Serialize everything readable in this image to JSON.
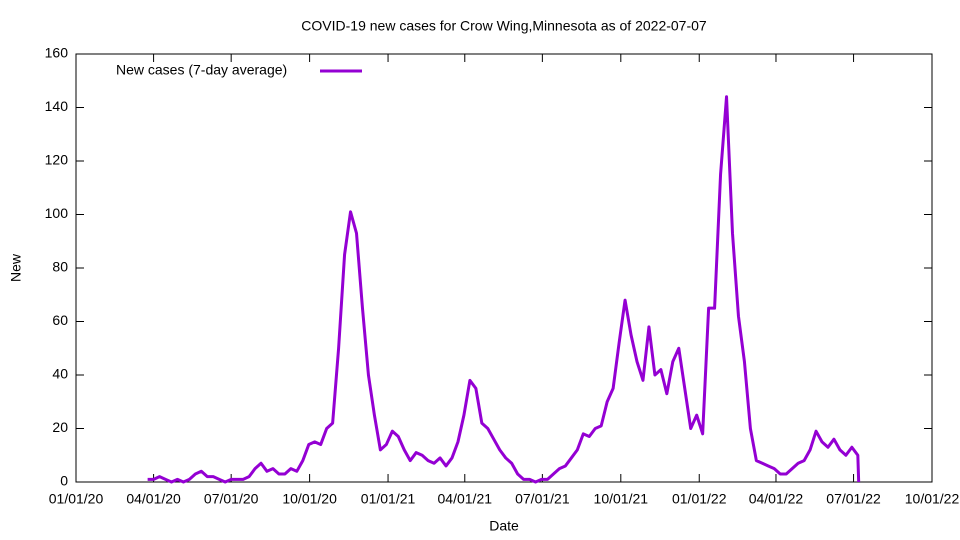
{
  "chart_data": {
    "type": "line",
    "title": "COVID-19 new cases for Crow Wing,Minnesota as of 2022-07-07",
    "x_label": "Date",
    "y_label": "New",
    "xlim": [
      "2020-01-01",
      "2022-10-01"
    ],
    "xticks": [
      {
        "value": "2020-01-01",
        "label": "01/01/20"
      },
      {
        "value": "2020-04-01",
        "label": "04/01/20"
      },
      {
        "value": "2020-07-01",
        "label": "07/01/20"
      },
      {
        "value": "2020-10-01",
        "label": "10/01/20"
      },
      {
        "value": "2021-01-01",
        "label": "01/01/21"
      },
      {
        "value": "2021-04-01",
        "label": "04/01/21"
      },
      {
        "value": "2021-07-01",
        "label": "07/01/21"
      },
      {
        "value": "2021-10-01",
        "label": "10/01/21"
      },
      {
        "value": "2022-01-01",
        "label": "01/01/22"
      },
      {
        "value": "2022-04-01",
        "label": "04/01/22"
      },
      {
        "value": "2022-07-01",
        "label": "07/01/22"
      },
      {
        "value": "2022-10-01",
        "label": "10/01/22"
      }
    ],
    "ylim": [
      0,
      160
    ],
    "yticks": [
      0,
      20,
      40,
      60,
      80,
      100,
      120,
      140,
      160
    ],
    "legend": "top-left",
    "x": [
      "2020-03-25",
      "2020-04-01",
      "2020-04-08",
      "2020-04-15",
      "2020-04-22",
      "2020-04-29",
      "2020-05-06",
      "2020-05-13",
      "2020-05-20",
      "2020-05-27",
      "2020-06-03",
      "2020-06-10",
      "2020-06-17",
      "2020-06-24",
      "2020-07-01",
      "2020-07-08",
      "2020-07-15",
      "2020-07-22",
      "2020-07-29",
      "2020-08-05",
      "2020-08-12",
      "2020-08-19",
      "2020-08-26",
      "2020-09-02",
      "2020-09-09",
      "2020-09-16",
      "2020-09-23",
      "2020-09-30",
      "2020-10-07",
      "2020-10-14",
      "2020-10-21",
      "2020-10-28",
      "2020-11-04",
      "2020-11-11",
      "2020-11-18",
      "2020-11-25",
      "2020-12-02",
      "2020-12-09",
      "2020-12-16",
      "2020-12-23",
      "2020-12-30",
      "2021-01-06",
      "2021-01-13",
      "2021-01-20",
      "2021-01-27",
      "2021-02-03",
      "2021-02-10",
      "2021-02-17",
      "2021-02-24",
      "2021-03-03",
      "2021-03-10",
      "2021-03-17",
      "2021-03-24",
      "2021-03-31",
      "2021-04-07",
      "2021-04-14",
      "2021-04-21",
      "2021-04-28",
      "2021-05-05",
      "2021-05-12",
      "2021-05-19",
      "2021-05-26",
      "2021-06-02",
      "2021-06-09",
      "2021-06-16",
      "2021-06-23",
      "2021-06-30",
      "2021-07-07",
      "2021-07-14",
      "2021-07-21",
      "2021-07-28",
      "2021-08-04",
      "2021-08-11",
      "2021-08-18",
      "2021-08-25",
      "2021-09-01",
      "2021-09-08",
      "2021-09-15",
      "2021-09-22",
      "2021-09-29",
      "2021-10-06",
      "2021-10-13",
      "2021-10-20",
      "2021-10-27",
      "2021-11-03",
      "2021-11-10",
      "2021-11-17",
      "2021-11-24",
      "2021-12-01",
      "2021-12-08",
      "2021-12-15",
      "2021-12-22",
      "2021-12-29",
      "2022-01-05",
      "2022-01-12",
      "2022-01-19",
      "2022-01-26",
      "2022-02-02",
      "2022-02-09",
      "2022-02-16",
      "2022-02-23",
      "2022-03-02",
      "2022-03-09",
      "2022-03-16",
      "2022-03-23",
      "2022-03-30",
      "2022-04-06",
      "2022-04-13",
      "2022-04-20",
      "2022-04-27",
      "2022-05-04",
      "2022-05-11",
      "2022-05-18",
      "2022-05-25",
      "2022-06-01",
      "2022-06-08",
      "2022-06-15",
      "2022-06-22",
      "2022-06-29",
      "2022-07-06",
      "2022-07-07"
    ],
    "series": [
      {
        "name": "New cases (7-day average)",
        "color": "#9400d3",
        "values": [
          1,
          1,
          2,
          1,
          0,
          1,
          0,
          1,
          3,
          4,
          2,
          2,
          1,
          0,
          1,
          1,
          1,
          2,
          5,
          7,
          4,
          5,
          3,
          3,
          5,
          4,
          8,
          14,
          15,
          14,
          20,
          22,
          50,
          85,
          101,
          93,
          65,
          40,
          25,
          12,
          14,
          19,
          17,
          12,
          8,
          11,
          10,
          8,
          7,
          9,
          6,
          9,
          15,
          25,
          38,
          35,
          22,
          20,
          16,
          12,
          9,
          7,
          3,
          1,
          1,
          0,
          1,
          1,
          3,
          5,
          6,
          9,
          12,
          18,
          17,
          20,
          21,
          30,
          35,
          52,
          68,
          55,
          45,
          38,
          58,
          40,
          42,
          33,
          45,
          50,
          35,
          20,
          25,
          18,
          65,
          65,
          115,
          144,
          93,
          62,
          45,
          20,
          8,
          7,
          6,
          5,
          3,
          3,
          5,
          7,
          8,
          12,
          19,
          15,
          13,
          16,
          12,
          10,
          13,
          10,
          0
        ]
      }
    ]
  }
}
